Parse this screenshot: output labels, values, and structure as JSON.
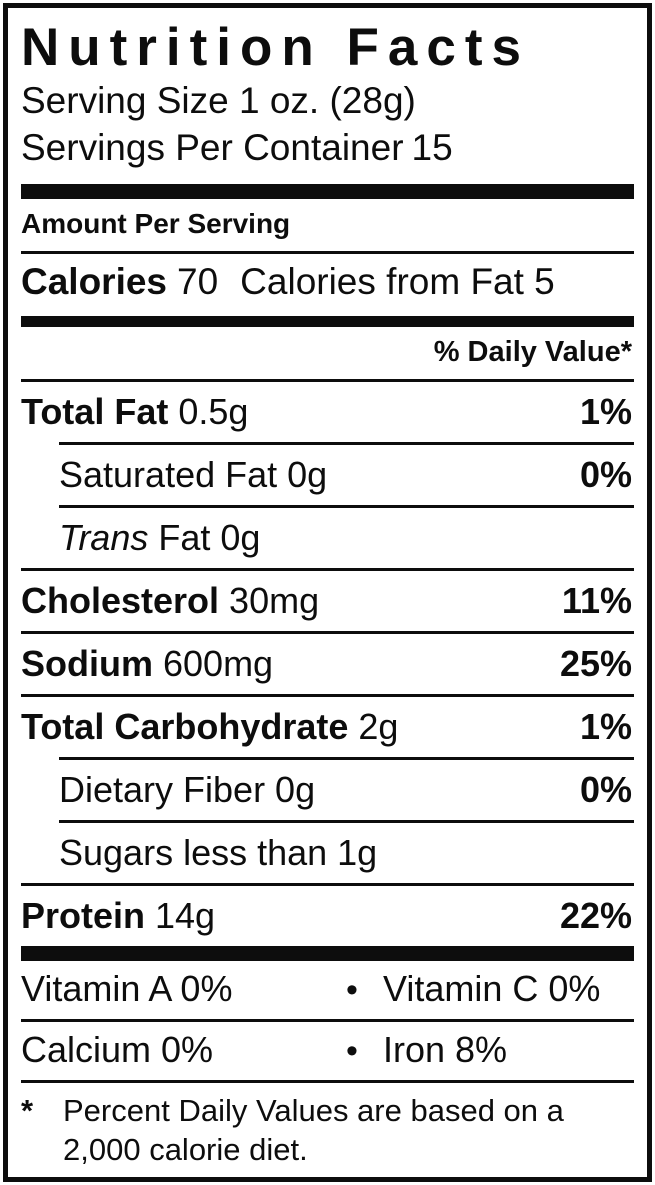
{
  "label": {
    "title": "Nutrition Facts",
    "serving_size": "Serving Size 1 oz. (28g)",
    "servings_per_container_label": "Servings Per Container",
    "servings_per_container_value": "15",
    "amount_per_serving": "Amount Per Serving",
    "calories_label": "Calories",
    "calories_value": "70",
    "calories_from_fat": "Calories from Fat 5",
    "daily_value_header": "% Daily Value*",
    "rows": [
      {
        "strong": "Total Fat",
        "italic": "",
        "text": " 0.5g",
        "dv": "1%"
      },
      {
        "strong": "",
        "italic": "",
        "text": "Saturated Fat 0g",
        "dv": "0%"
      },
      {
        "strong": "",
        "italic": "Trans",
        "text": " Fat 0g",
        "dv": ""
      },
      {
        "strong": "Cholesterol",
        "italic": "",
        "text": " 30mg",
        "dv": "11%"
      },
      {
        "strong": "Sodium",
        "italic": "",
        "text": " 600mg",
        "dv": "25%"
      },
      {
        "strong": "Total Carbohydrate",
        "italic": "",
        "text": " 2g",
        "dv": "1%"
      },
      {
        "strong": "",
        "italic": "",
        "text": "Dietary Fiber 0g",
        "dv": "0%"
      },
      {
        "strong": "",
        "italic": "",
        "text": "Sugars less than 1g",
        "dv": ""
      },
      {
        "strong": "Protein",
        "italic": "",
        "text": " 14g",
        "dv": "22%"
      }
    ],
    "vitamins": [
      {
        "left": "Vitamin A 0%",
        "bullet": "•",
        "right": "Vitamin C 0%"
      },
      {
        "left": "Calcium 0%",
        "bullet": "•",
        "right": "Iron 8%"
      }
    ],
    "footnote": {
      "asterisk": "*",
      "text": "Percent Daily Values are based on a 2,000 calorie diet."
    },
    "colors": {
      "ink": "#0d0d0d",
      "background": "#ffffff"
    }
  }
}
